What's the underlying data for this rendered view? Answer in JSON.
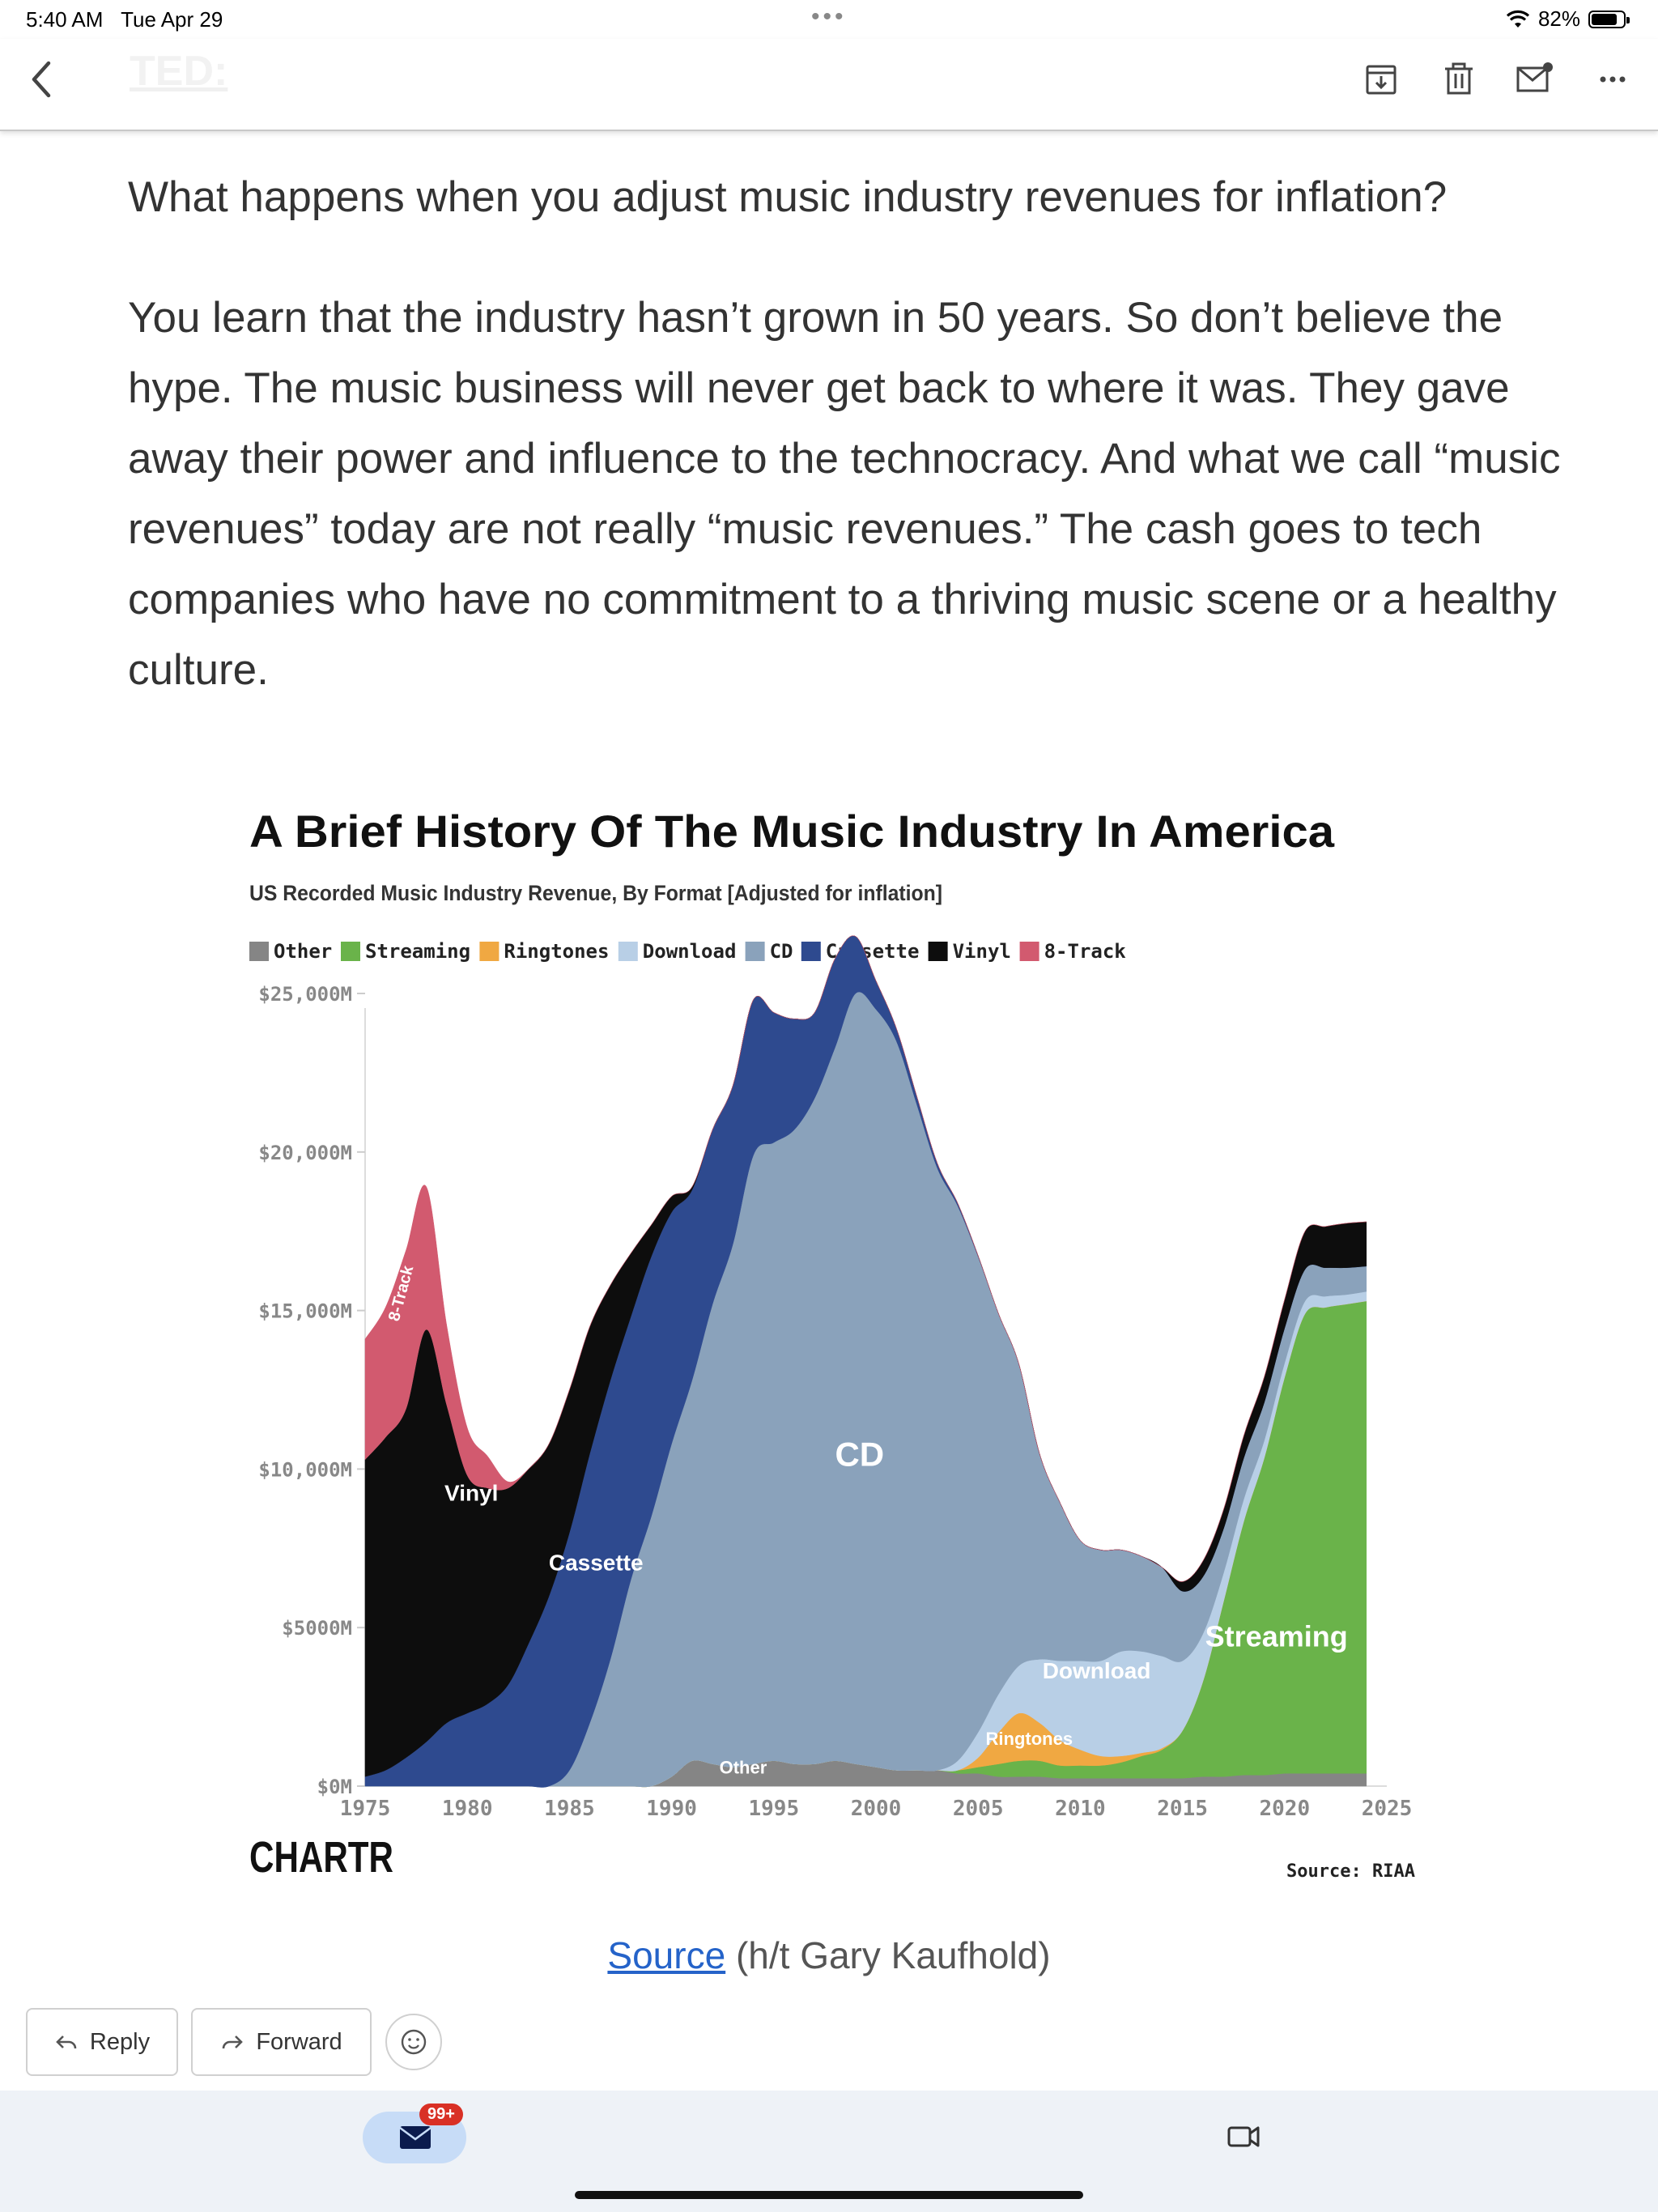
{
  "status_bar": {
    "time": "5:40 AM",
    "date": "Tue Apr 29",
    "battery": "82%",
    "battery_level": 0.82
  },
  "header": {
    "faint_title": "TED:"
  },
  "toolbar": {
    "icons": [
      "archive-icon",
      "trash-icon",
      "mark-unread-icon",
      "more-icon"
    ]
  },
  "article": {
    "p1": "What happens when you adjust music industry revenues for inflation?",
    "p2": "You learn that the industry hasn’t grown in 50 years. So don’t believe the hype. The music business will never get back to where it was. They gave away their power and influence to the technocracy. And what we call “music revenues” today are not really “music revenues.” The cash goes to tech companies who have no commitment to a thriving music scene or a healthy culture."
  },
  "source_line": {
    "link": "Source",
    "rest": " (h/t Gary Kaufhold)"
  },
  "actions": {
    "reply": "Reply",
    "forward": "Forward"
  },
  "bottom_nav": {
    "badge": "99+"
  },
  "colors": {
    "accent": "#2563c9",
    "badge": "#d93025"
  },
  "chart_data": {
    "type": "area",
    "title": "A Brief History Of The Music Industry In America",
    "subtitle": "US Recorded Music Industry Revenue, By Format [Adjusted for inflation]",
    "brand": "CHARTR",
    "source": "Source: RIAA",
    "x_ticks": [
      1975,
      1980,
      1985,
      1990,
      1995,
      2000,
      2005,
      2010,
      2015,
      2020,
      2025
    ],
    "y_ticks": [
      0,
      5000,
      10000,
      15000,
      20000,
      25000
    ],
    "y_tick_labels": [
      "$0M",
      "$5000M",
      "$10,000M",
      "$15,000M",
      "$20,000M",
      "$25,000M"
    ],
    "xlim": [
      1975,
      2025
    ],
    "ylim": [
      0,
      28000
    ],
    "legend_position": "top-left",
    "legend": [
      "Other",
      "Streaming",
      "Ringtones",
      "Download",
      "CD",
      "Cassette",
      "Vinyl",
      "8-Track"
    ],
    "series_labels": [
      {
        "text": "8-Track",
        "x": 1977.0,
        "y": 15500,
        "rotate": -75,
        "size": 20
      },
      {
        "text": "Vinyl",
        "x": 1980.2,
        "y": 9000,
        "rotate": 0,
        "size": 28
      },
      {
        "text": "Cassette",
        "x": 1986.3,
        "y": 6800,
        "rotate": 0,
        "size": 28
      },
      {
        "text": "CD",
        "x": 1999.2,
        "y": 10100,
        "rotate": 0,
        "size": 42
      },
      {
        "text": "Other",
        "x": 1993.5,
        "y": 400,
        "rotate": 0,
        "size": 22
      },
      {
        "text": "Ringtones",
        "x": 2007.5,
        "y": 1300,
        "rotate": 0,
        "size": 22
      },
      {
        "text": "Download",
        "x": 2010.8,
        "y": 3400,
        "rotate": 0,
        "size": 28
      },
      {
        "text": "Streaming",
        "x": 2019.6,
        "y": 4400,
        "rotate": 0,
        "size": 36
      }
    ],
    "x": [
      1975,
      1976,
      1977,
      1978,
      1979,
      1980,
      1981,
      1982,
      1983,
      1984,
      1985,
      1986,
      1987,
      1988,
      1989,
      1990,
      1991,
      1992,
      1993,
      1994,
      1995,
      1996,
      1997,
      1998,
      1999,
      2000,
      2001,
      2002,
      2003,
      2004,
      2005,
      2006,
      2007,
      2008,
      2009,
      2010,
      2011,
      2012,
      2013,
      2014,
      2015,
      2016,
      2017,
      2018,
      2019,
      2020,
      2021,
      2022,
      2023,
      2024
    ],
    "series": [
      {
        "name": "Other",
        "color": "#858585",
        "values": [
          0,
          0,
          0,
          0,
          0,
          0,
          0,
          0,
          0,
          0,
          0,
          0,
          0,
          0,
          0,
          300,
          800,
          700,
          600,
          700,
          800,
          700,
          700,
          800,
          700,
          600,
          500,
          500,
          500,
          400,
          400,
          300,
          300,
          300,
          250,
          250,
          250,
          250,
          250,
          250,
          250,
          300,
          300,
          350,
          350,
          400,
          400,
          400,
          400,
          400
        ]
      },
      {
        "name": "Streaming",
        "color": "#6ab34a",
        "values": [
          0,
          0,
          0,
          0,
          0,
          0,
          0,
          0,
          0,
          0,
          0,
          0,
          0,
          0,
          0,
          0,
          0,
          0,
          0,
          0,
          0,
          0,
          0,
          0,
          0,
          0,
          0,
          0,
          0,
          100,
          200,
          400,
          500,
          500,
          400,
          400,
          400,
          500,
          700,
          900,
          1500,
          3000,
          5500,
          8000,
          10000,
          12500,
          14500,
          14700,
          14800,
          14900
        ]
      },
      {
        "name": "Ringtones",
        "color": "#f0a842",
        "values": [
          0,
          0,
          0,
          0,
          0,
          0,
          0,
          0,
          0,
          0,
          0,
          0,
          0,
          0,
          0,
          0,
          0,
          0,
          0,
          0,
          0,
          0,
          0,
          0,
          0,
          0,
          0,
          0,
          0,
          0,
          300,
          1000,
          1500,
          1200,
          800,
          500,
          300,
          200,
          100,
          50,
          0,
          0,
          0,
          0,
          0,
          0,
          0,
          0,
          0,
          0
        ]
      },
      {
        "name": "Download",
        "color": "#b8cfe6",
        "values": [
          0,
          0,
          0,
          0,
          0,
          0,
          0,
          0,
          0,
          0,
          0,
          0,
          0,
          0,
          0,
          0,
          0,
          0,
          0,
          0,
          0,
          0,
          0,
          0,
          0,
          0,
          0,
          0,
          0,
          300,
          800,
          1200,
          1500,
          2000,
          2500,
          2800,
          3000,
          3300,
          3200,
          2900,
          2200,
          1500,
          900,
          700,
          550,
          450,
          400,
          350,
          300,
          300
        ]
      },
      {
        "name": "CD",
        "color": "#8aa2bb",
        "values": [
          0,
          0,
          0,
          0,
          0,
          0,
          0,
          0,
          0,
          0,
          500,
          2000,
          4000,
          6500,
          8500,
          10500,
          12000,
          14500,
          16500,
          19200,
          19500,
          20000,
          21000,
          22500,
          24300,
          23900,
          23000,
          21000,
          19000,
          17500,
          15000,
          12000,
          9500,
          6500,
          5000,
          3800,
          3500,
          3200,
          3000,
          2800,
          2200,
          1800,
          1400,
          1300,
          1200,
          1100,
          1000,
          900,
          850,
          800
        ]
      },
      {
        "name": "Cassette",
        "color": "#2e4a8f",
        "values": [
          300,
          500,
          900,
          1400,
          2000,
          2300,
          2600,
          3200,
          4500,
          6000,
          7500,
          8500,
          8800,
          8300,
          8200,
          7300,
          6000,
          5500,
          5000,
          4900,
          4100,
          3500,
          2700,
          2800,
          1800,
          900,
          400,
          250,
          150,
          80,
          30,
          0,
          0,
          0,
          0,
          0,
          0,
          0,
          0,
          0,
          0,
          0,
          0,
          0,
          0,
          0,
          0,
          0,
          0,
          0
        ]
      },
      {
        "name": "Vinyl",
        "color": "#0d0d0d",
        "values": [
          10000,
          10500,
          11000,
          13000,
          10000,
          7500,
          6800,
          6200,
          5500,
          4800,
          4500,
          4000,
          3000,
          2000,
          1000,
          500,
          100,
          0,
          0,
          0,
          0,
          0,
          0,
          0,
          0,
          0,
          0,
          0,
          0,
          0,
          0,
          0,
          0,
          0,
          0,
          0,
          0,
          0,
          0,
          0,
          300,
          500,
          600,
          700,
          800,
          900,
          1200,
          1300,
          1400,
          1400
        ]
      },
      {
        "name": "8-Track",
        "color": "#d25a6f",
        "values": [
          3800,
          4100,
          5000,
          4500,
          2500,
          1500,
          1000,
          200,
          0,
          0,
          0,
          0,
          0,
          0,
          0,
          0,
          0,
          0,
          0,
          0,
          0,
          0,
          0,
          0,
          0,
          0,
          0,
          0,
          0,
          0,
          0,
          0,
          0,
          0,
          0,
          0,
          0,
          0,
          0,
          0,
          0,
          0,
          0,
          0,
          0,
          0,
          0,
          0,
          0,
          0
        ]
      }
    ]
  }
}
